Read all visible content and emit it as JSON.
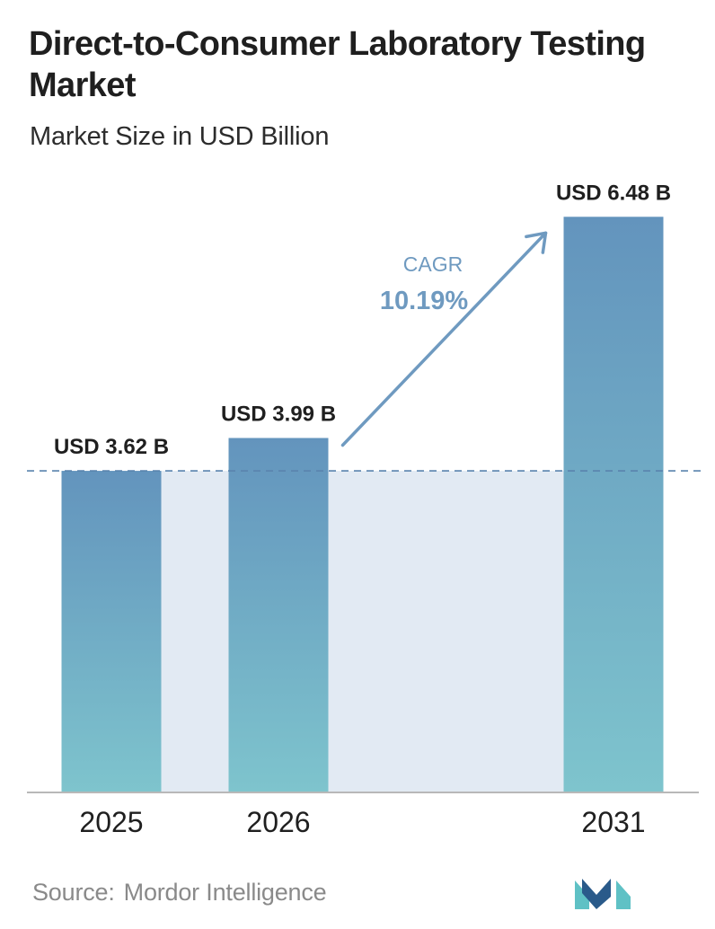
{
  "header": {
    "title": "Direct-to-Consumer Laboratory Testing Market",
    "subtitle": "Market Size in USD Billion"
  },
  "chart_data": {
    "type": "bar",
    "categories": [
      "2025",
      "2026",
      "2031"
    ],
    "values": [
      3.62,
      3.99,
      6.48
    ],
    "value_labels": [
      "USD 3.62 B",
      "USD 3.99 B",
      "USD 6.48 B"
    ],
    "title": "Direct-to-Consumer Laboratory Testing Market",
    "subtitle": "Market Size in USD Billion",
    "xlabel": "",
    "ylabel": "",
    "ylim": [
      0,
      7.1
    ],
    "grid": false,
    "reference_line_value": 3.62,
    "annotation": {
      "label": "CAGR",
      "value": "10.19%",
      "from": "2026",
      "to": "2031"
    }
  },
  "colors": {
    "bar_top": "#6394bd",
    "bar_bottom": "#7ec4cd",
    "shade_fill": "#e2eaf3",
    "reference_line": "#5a84ad",
    "arrow": "#6f9ac0",
    "cagr_label": "#6f9ac0",
    "axis": "#b8b8b8",
    "title": "#1f1f1f",
    "source": "#8a8a8a",
    "logo_dark": "#2a5a8a",
    "logo_light": "#5fc1c5"
  },
  "footer": {
    "source_label": "Source:",
    "source_name": "Mordor Intelligence",
    "logo_icon": "mordor-intelligence-logo"
  }
}
